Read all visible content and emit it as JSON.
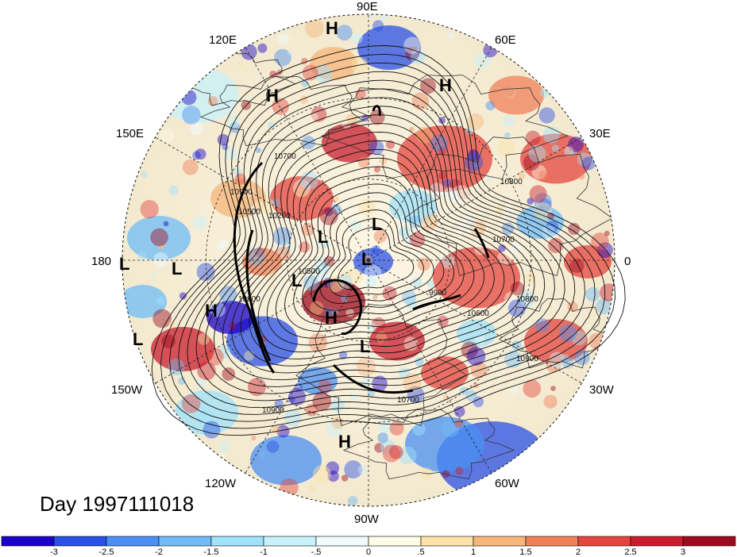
{
  "map": {
    "projection": "polar-stereographic-north",
    "center_longitude_right": "0",
    "longitude_labels": [
      "90E",
      "60E",
      "30E",
      "0",
      "30W",
      "60W",
      "90W",
      "120W",
      "150W",
      "180",
      "150E",
      "120E"
    ],
    "anomaly_colors": [
      "#1a00c8",
      "#2a50e6",
      "#4a8ff2",
      "#6fbcf7",
      "#9fe2fa",
      "#c8f2fb",
      "#f0fbff",
      "#fffbe6",
      "#fbe3a7",
      "#f6b67a",
      "#f08059",
      "#e4463f",
      "#c81e2e",
      "#9c0b1e"
    ],
    "pressure_labels": [
      {
        "text": "H",
        "name": "high-label-top"
      },
      {
        "text": "H",
        "name": "high-label-ne"
      },
      {
        "text": "H",
        "name": "high-label-nw"
      },
      {
        "text": "H",
        "name": "high-label-west"
      },
      {
        "text": "H",
        "name": "high-label-center"
      },
      {
        "text": "H",
        "name": "high-label-south"
      },
      {
        "text": "L",
        "name": "low-label-edge"
      },
      {
        "text": "L",
        "name": "low-label-west"
      },
      {
        "text": "L",
        "name": "low-label-sw"
      },
      {
        "text": "L",
        "name": "low-label-center-a"
      },
      {
        "text": "L",
        "name": "low-label-center-b"
      },
      {
        "text": "L",
        "name": "low-label-center-c"
      },
      {
        "text": "L",
        "name": "low-label-center-d"
      },
      {
        "text": "L",
        "name": "low-label-center-e"
      }
    ],
    "contour_labels": [
      "10700",
      "10800",
      "10200",
      "10500",
      "10900",
      "9900",
      "10600",
      "10800",
      "10700",
      "10900",
      "10700",
      "10900",
      "10500",
      "10900"
    ]
  },
  "title": {
    "day": "Day 1997111018"
  },
  "colorbar": {
    "ticks": [
      "-3",
      "-2.5",
      "-2",
      "-1.5",
      "-1",
      "-.5",
      "0",
      ".5",
      "1",
      "1.5",
      "2",
      "2.5",
      "3"
    ],
    "colors": [
      "#1a00c8",
      "#2a50e6",
      "#4a8ff2",
      "#6fbcf7",
      "#9fe2fa",
      "#c8f2fb",
      "#f0fbff",
      "#fffbe6",
      "#fbe3a7",
      "#f6b67a",
      "#f08059",
      "#e4463f",
      "#c81e2e",
      "#9c0b1e"
    ]
  }
}
